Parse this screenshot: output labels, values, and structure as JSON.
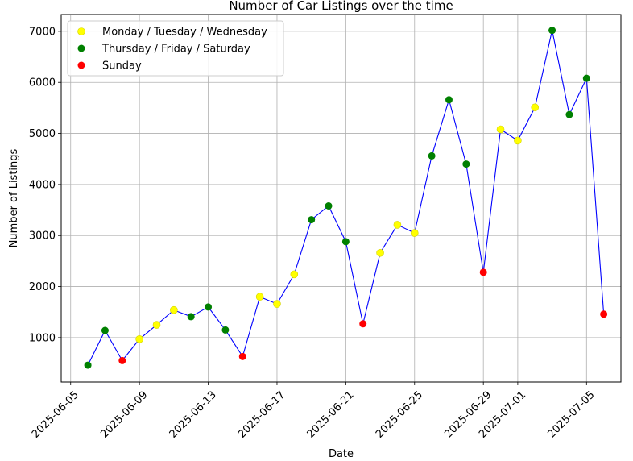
{
  "chart_data": {
    "type": "line",
    "title": "Number of Car Listings over the time",
    "xlabel": "Date",
    "ylabel": "Number of Listings",
    "grid": true,
    "legend_position": "top-left",
    "line_color": "#0000ff",
    "x_ticks": [
      "2025-06-05",
      "2025-06-09",
      "2025-06-13",
      "2025-06-17",
      "2025-06-21",
      "2025-06-25",
      "2025-06-29",
      "2025-07-01",
      "2025-07-05"
    ],
    "y_ticks": [
      1000,
      2000,
      3000,
      4000,
      5000,
      6000,
      7000
    ],
    "xlim": [
      "2025-06-05",
      "2025-07-06"
    ],
    "ylim": [
      130,
      7330
    ],
    "categories_legend": [
      {
        "key": "mtw",
        "name": "Monday / Tuesday / Wednesday",
        "color": "#ffff00"
      },
      {
        "key": "tfs",
        "name": "Thursday / Friday / Saturday",
        "color": "#008000"
      },
      {
        "key": "sun",
        "name": "Sunday",
        "color": "#ff0000"
      }
    ],
    "points": [
      {
        "date": "2025-06-06",
        "value": 460,
        "group": "tfs"
      },
      {
        "date": "2025-06-07",
        "value": 1140,
        "group": "tfs"
      },
      {
        "date": "2025-06-08",
        "value": 550,
        "group": "sun"
      },
      {
        "date": "2025-06-09",
        "value": 970,
        "group": "mtw"
      },
      {
        "date": "2025-06-10",
        "value": 1250,
        "group": "mtw"
      },
      {
        "date": "2025-06-11",
        "value": 1540,
        "group": "mtw"
      },
      {
        "date": "2025-06-12",
        "value": 1410,
        "group": "tfs"
      },
      {
        "date": "2025-06-13",
        "value": 1600,
        "group": "tfs"
      },
      {
        "date": "2025-06-14",
        "value": 1150,
        "group": "tfs"
      },
      {
        "date": "2025-06-15",
        "value": 630,
        "group": "sun"
      },
      {
        "date": "2025-06-16",
        "value": 1800,
        "group": "mtw"
      },
      {
        "date": "2025-06-17",
        "value": 1660,
        "group": "mtw"
      },
      {
        "date": "2025-06-18",
        "value": 2240,
        "group": "mtw"
      },
      {
        "date": "2025-06-19",
        "value": 3310,
        "group": "tfs"
      },
      {
        "date": "2025-06-20",
        "value": 3580,
        "group": "tfs"
      },
      {
        "date": "2025-06-21",
        "value": 2880,
        "group": "tfs"
      },
      {
        "date": "2025-06-22",
        "value": 1270,
        "group": "sun"
      },
      {
        "date": "2025-06-23",
        "value": 2660,
        "group": "mtw"
      },
      {
        "date": "2025-06-24",
        "value": 3210,
        "group": "mtw"
      },
      {
        "date": "2025-06-25",
        "value": 3050,
        "group": "mtw"
      },
      {
        "date": "2025-06-26",
        "value": 4560,
        "group": "tfs"
      },
      {
        "date": "2025-06-27",
        "value": 5660,
        "group": "tfs"
      },
      {
        "date": "2025-06-28",
        "value": 4400,
        "group": "tfs"
      },
      {
        "date": "2025-06-29",
        "value": 2280,
        "group": "sun"
      },
      {
        "date": "2025-06-30",
        "value": 5080,
        "group": "mtw"
      },
      {
        "date": "2025-07-01",
        "value": 4860,
        "group": "mtw"
      },
      {
        "date": "2025-07-02",
        "value": 5510,
        "group": "mtw"
      },
      {
        "date": "2025-07-03",
        "value": 7020,
        "group": "tfs"
      },
      {
        "date": "2025-07-04",
        "value": 5370,
        "group": "tfs"
      },
      {
        "date": "2025-07-05",
        "value": 6080,
        "group": "tfs"
      },
      {
        "date": "2025-07-06",
        "value": 1460,
        "group": "sun"
      }
    ]
  }
}
